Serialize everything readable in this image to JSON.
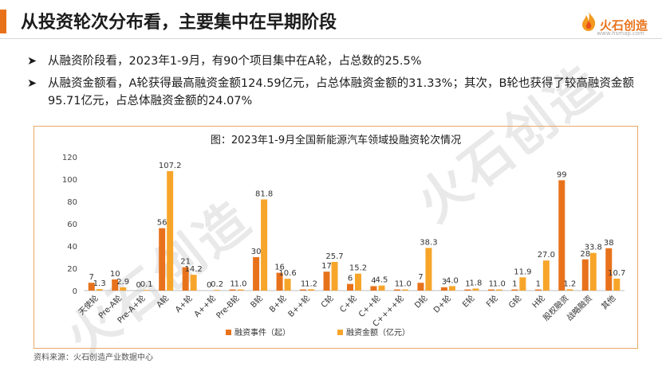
{
  "header": {
    "title": "从投资轮次分布看，主要集中在早期阶段",
    "logo_text": "火石创造",
    "logo_sub": "www.hsmap.com"
  },
  "watermark": "火石创造",
  "bullets": [
    "从融资阶段看，2023年1-9月，有90个项目集中在A轮，占总数的25.5%",
    "从融资金额看，A轮获得最高融资金额124.59亿元，占总体融资金额的31.33%；其次，B轮也获得了较高融资金额95.71亿元，占总体融资金额的24.07%"
  ],
  "source": "资料来源：火石创造产业数据中心",
  "colors": {
    "accent": "#e8721b",
    "series1": "#e8721b",
    "series2": "#f7a52a",
    "axis": "#bfbfbf"
  },
  "chart_data": {
    "type": "bar",
    "title": "图：2023年1-9月全国新能源汽车领域投融资轮次情况",
    "categories": [
      "天使轮",
      "Pre-A轮",
      "Pre-A+轮",
      "A轮",
      "A+轮",
      "A++轮",
      "Pre-B轮",
      "B轮",
      "B+轮",
      "B++轮",
      "C轮",
      "C+轮",
      "C++轮",
      "C++++轮",
      "D轮",
      "D+轮",
      "E轮",
      "F轮",
      "G轮",
      "H轮",
      "股权融资",
      "战略融资",
      "其他"
    ],
    "series": [
      {
        "name": "融资事件（起）",
        "values": [
          7,
          10,
          0,
          56,
          21,
          0,
          1,
          30,
          16,
          1,
          17,
          6,
          4,
          1,
          7,
          3,
          1,
          1,
          1,
          1,
          99,
          28,
          38
        ],
        "labels": [
          "7",
          "10",
          "0",
          "56",
          "21",
          "0",
          "1",
          "30",
          "16",
          "1",
          "17",
          "6",
          "4",
          "1",
          "7",
          "3",
          "1",
          "1",
          "1",
          "1",
          "99",
          "28",
          "38"
        ]
      },
      {
        "name": "融资金额（亿元）",
        "values": [
          1.3,
          2.9,
          0.1,
          107.2,
          14.2,
          0.2,
          1.0,
          81.8,
          10.6,
          1.2,
          25.7,
          15.2,
          4.5,
          1.0,
          38.3,
          4.0,
          1.8,
          1.0,
          11.9,
          27.0,
          1.2,
          33.8,
          10.7
        ],
        "labels": [
          "1.3",
          "2.9",
          "0.1",
          "107.2",
          "14.2",
          "0.2",
          "1.0",
          "81.8",
          "10.6",
          "1.2",
          "25.7",
          "15.2",
          "4.5",
          "1.0",
          "38.3",
          "4.0",
          "1.8",
          "1.0",
          "11.9",
          "27.0",
          "1.2",
          "33.8",
          "10.7"
        ]
      }
    ],
    "yticks": [
      "0",
      "20",
      "40",
      "60",
      "80",
      "100",
      "120"
    ],
    "ylim": [
      0,
      120
    ],
    "legend_position": "bottom"
  }
}
